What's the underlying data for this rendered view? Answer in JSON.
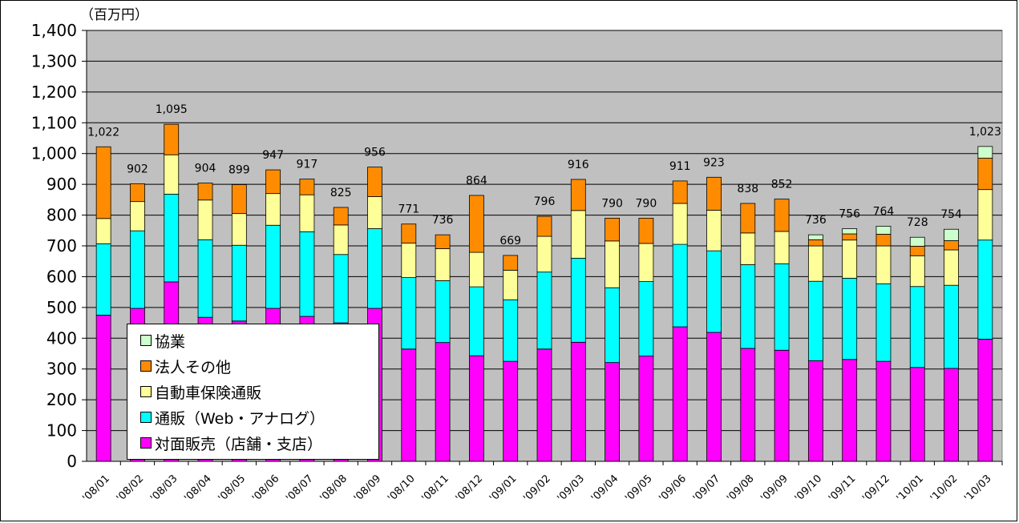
{
  "chart_data": {
    "type": "bar",
    "stacked": true,
    "unit_label": "（百万円）",
    "ylim": [
      0,
      1400
    ],
    "yticks": [
      "0",
      "100",
      "200",
      "300",
      "400",
      "500",
      "600",
      "700",
      "800",
      "900",
      "1,000",
      "1,100",
      "1,200",
      "1,300",
      "1,400"
    ],
    "grid": true,
    "legend_position": "bottom-left",
    "categories": [
      "'08/01",
      "'08/02",
      "'08/03",
      "'08/04",
      "'08/05",
      "'08/06",
      "'08/07",
      "'08/08",
      "'08/09",
      "'08/10",
      "'08/11",
      "'08/12",
      "'09/01",
      "'09/02",
      "'09/03",
      "'09/04",
      "'09/05",
      "'09/06",
      "'09/07",
      "'09/08",
      "'09/09",
      "'09/10",
      "'09/11",
      "'09/12",
      "'10/01",
      "'10/02",
      "'10/03"
    ],
    "totals": [
      "1,022",
      "902",
      "1,095",
      "904",
      "899",
      "947",
      "917",
      "825",
      "956",
      "771",
      "736",
      "864",
      "669",
      "796",
      "916",
      "790",
      "790",
      "911",
      "923",
      "838",
      "852",
      "736",
      "756",
      "764",
      "728",
      "754",
      "1,023"
    ],
    "series": [
      {
        "name": "対面販売（店舗・支店）",
        "color": "#ff00ff",
        "values": [
          475,
          497,
          583,
          468,
          456,
          497,
          471,
          450,
          497,
          365,
          386,
          343,
          325,
          365,
          387,
          321,
          342,
          437,
          419,
          367,
          361,
          327,
          331,
          325,
          305,
          302,
          397
        ]
      },
      {
        "name": "通販（Web・アナログ）",
        "color": "#00ffff",
        "values": [
          232,
          252,
          285,
          252,
          246,
          270,
          275,
          222,
          259,
          232,
          201,
          224,
          200,
          250,
          273,
          243,
          242,
          268,
          265,
          272,
          281,
          258,
          264,
          252,
          263,
          270,
          322
        ]
      },
      {
        "name": "自動車保険通販",
        "color": "#ffff99",
        "values": [
          82,
          95,
          128,
          129,
          103,
          103,
          120,
          96,
          104,
          112,
          104,
          112,
          96,
          116,
          155,
          152,
          124,
          133,
          132,
          103,
          105,
          115,
          124,
          123,
          100,
          115,
          164
        ]
      },
      {
        "name": "法人その他",
        "color": "#ff8c00",
        "values": [
          233,
          58,
          99,
          55,
          94,
          77,
          51,
          57,
          96,
          62,
          45,
          185,
          48,
          65,
          101,
          74,
          82,
          73,
          107,
          96,
          105,
          20,
          20,
          38,
          31,
          30,
          102
        ]
      },
      {
        "name": "協業",
        "color": "#ccffcc",
        "values": [
          0,
          0,
          0,
          0,
          0,
          0,
          0,
          0,
          0,
          0,
          0,
          0,
          0,
          0,
          0,
          0,
          0,
          0,
          0,
          0,
          0,
          16,
          17,
          26,
          29,
          37,
          38
        ]
      }
    ]
  },
  "legend": {
    "items": [
      {
        "label": "協業",
        "color": "#ccffcc"
      },
      {
        "label": "法人その他",
        "color": "#ff8c00"
      },
      {
        "label": "自動車保険通販",
        "color": "#ffff99"
      },
      {
        "label": "通販（Web・アナログ）",
        "color": "#00ffff"
      },
      {
        "label": "対面販売（店舗・支店）",
        "color": "#ff00ff"
      }
    ]
  },
  "colors": {
    "plot_background": "#c0c0c0",
    "gridline": "#000000"
  }
}
